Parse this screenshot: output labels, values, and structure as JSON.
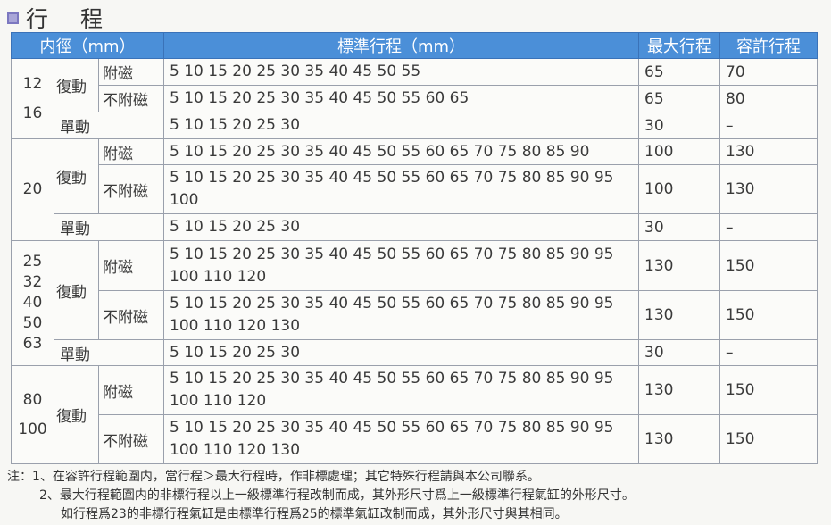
{
  "title": "行 程",
  "header": {
    "bore": "内徑（mm）",
    "std": "標準行程（mm）",
    "max": "最大行程",
    "allow": "容許行程"
  },
  "labels": {
    "double": "復動",
    "single": "單動",
    "mag": "附磁",
    "nomag": "不附磁"
  },
  "groups": [
    {
      "bore": "12\n16",
      "rows": [
        {
          "std": "5 10 15 20 25 30 35 40 45 50 55",
          "max": "65",
          "allow": "70"
        },
        {
          "std": "5 10 15 20 25 30 35 40 45 50 55 60 65",
          "max": "65",
          "allow": "80"
        },
        {
          "std": "5 10 15 20 25 30",
          "max": "30",
          "allow": "–"
        }
      ]
    },
    {
      "bore": "20",
      "rows": [
        {
          "std": "5 10 15 20 25 30 35 40 45 50 55 60 65 70 75 80 85 90",
          "max": "100",
          "allow": "130"
        },
        {
          "std": "5 10 15 20 25 30 35 40 45 50 55 60 65 70 75 80 85 90 95 100",
          "max": "100",
          "allow": "130"
        },
        {
          "std": "5 10 15 20 25 30",
          "max": "30",
          "allow": "–"
        }
      ]
    },
    {
      "bore": "25\n32\n40\n50\n63",
      "rows": [
        {
          "std": "5 10 15 20 25 30 35 40 45 50 55 60 65 70 75 80 85 90 95 100 110 120",
          "max": "130",
          "allow": "150"
        },
        {
          "std": "5 10 15 20 25 30 35 40 45 50 55 60 65 70 75 80 85 90 95 100 110 120 130",
          "max": "130",
          "allow": "150"
        },
        {
          "std": "5 10 15 20 25 30",
          "max": "30",
          "allow": "–"
        }
      ]
    },
    {
      "bore": "80\n100",
      "rows": [
        {
          "std": "5 10 15 20 25 30 35 40 45 50 55 60 65 70 75 80 85 90 95 100 110 120",
          "max": "130",
          "allow": "150"
        },
        {
          "std": "5 10 15 20 25 30 35 40 45 50 55 60 65 70 75 80 85 90 95 100 110 120 130",
          "max": "130",
          "allow": "150"
        }
      ]
    }
  ],
  "notes": [
    "注：1、在容許行程範圍内，當行程＞最大行程時，作非標處理；其它特殊行程請與本公司聯系。",
    "2、最大行程範圍内的非標行程以上一級標準行程改制而成，其外形尺寸爲上一級標準行程氣缸的外形尺寸。",
    "如行程爲23的非標行程氣缸是由標準行程爲25的標準氣缸改制而成，其外形尺寸與其相同。"
  ]
}
